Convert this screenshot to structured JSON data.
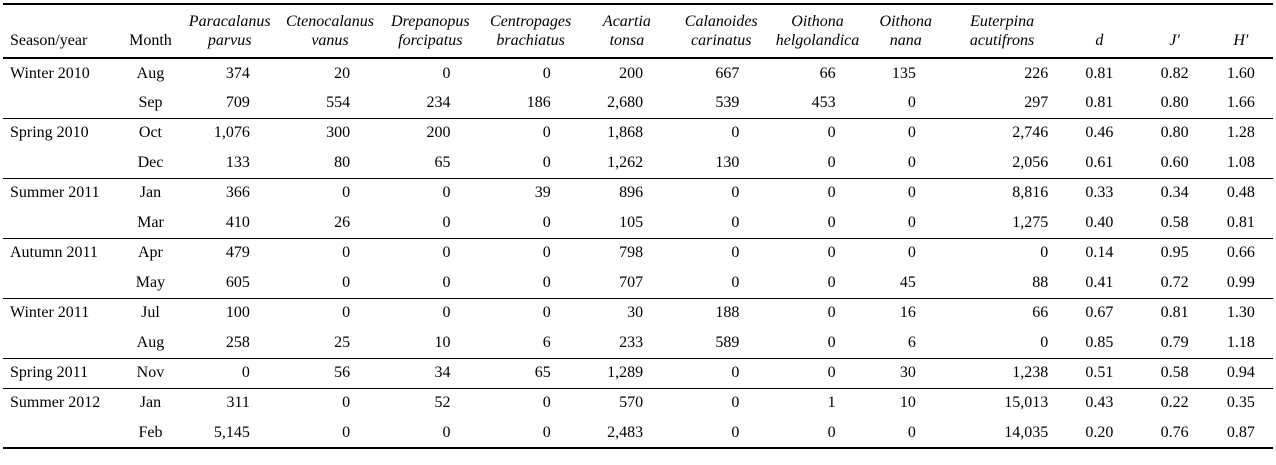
{
  "page": {
    "background_color": "#ffffff",
    "text_color": "#000000",
    "rule_color": "#000000"
  },
  "table": {
    "columns": [
      {
        "id": "season-year",
        "label_lines": [
          "Season/year"
        ],
        "italic": false
      },
      {
        "id": "month",
        "label_lines": [
          "Month"
        ],
        "italic": false
      },
      {
        "id": "paracalanus-parvus",
        "label_lines": [
          "Paracalanus",
          "parvus"
        ],
        "italic": true
      },
      {
        "id": "ctenocalanus-vanus",
        "label_lines": [
          "Ctenocalanus",
          "vanus"
        ],
        "italic": true
      },
      {
        "id": "drepanopus-forcipatus",
        "label_lines": [
          "Drepanopus",
          "forcipatus"
        ],
        "italic": true
      },
      {
        "id": "centropages-brachiatus",
        "label_lines": [
          "Centropages",
          "brachiatus"
        ],
        "italic": true
      },
      {
        "id": "acartia-tonsa",
        "label_lines": [
          "Acartia",
          "tonsa"
        ],
        "italic": true
      },
      {
        "id": "calanoides-carinatus",
        "label_lines": [
          "Calanoides",
          "carinatus"
        ],
        "italic": true
      },
      {
        "id": "oithona-helgolandica",
        "label_lines": [
          "Oithona",
          "helgolandica"
        ],
        "italic": true
      },
      {
        "id": "oithona-nana",
        "label_lines": [
          "Oithona",
          "nana"
        ],
        "italic": true
      },
      {
        "id": "euterpina-acutifrons",
        "label_lines": [
          "Euterpina",
          "acutifrons"
        ],
        "italic": true
      },
      {
        "id": "d-index",
        "label_lines": [
          "d"
        ],
        "italic": true
      },
      {
        "id": "j-index",
        "label_lines": [
          "J′"
        ],
        "italic": true
      },
      {
        "id": "h-index",
        "label_lines": [
          "H′"
        ],
        "italic": true
      }
    ],
    "rows": [
      {
        "season": "Winter 2010",
        "month": "Aug",
        "values": [
          "374",
          "20",
          "0",
          "0",
          "200",
          "667",
          "66",
          "135",
          "226",
          "0.81",
          "0.82",
          "1.60"
        ]
      },
      {
        "season": "",
        "month": "Sep",
        "values": [
          "709",
          "554",
          "234",
          "186",
          "2,680",
          "539",
          "453",
          "0",
          "297",
          "0.81",
          "0.80",
          "1.66"
        ]
      },
      {
        "season": "Spring 2010",
        "month": "Oct",
        "values": [
          "1,076",
          "300",
          "200",
          "0",
          "1,868",
          "0",
          "0",
          "0",
          "2,746",
          "0.46",
          "0.80",
          "1.28"
        ]
      },
      {
        "season": "",
        "month": "Dec",
        "values": [
          "133",
          "80",
          "65",
          "0",
          "1,262",
          "130",
          "0",
          "0",
          "2,056",
          "0.61",
          "0.60",
          "1.08"
        ]
      },
      {
        "season": "Summer 2011",
        "month": "Jan",
        "values": [
          "366",
          "0",
          "0",
          "39",
          "896",
          "0",
          "0",
          "0",
          "8,816",
          "0.33",
          "0.34",
          "0.48"
        ]
      },
      {
        "season": "",
        "month": "Mar",
        "values": [
          "410",
          "26",
          "0",
          "0",
          "105",
          "0",
          "0",
          "0",
          "1,275",
          "0.40",
          "0.58",
          "0.81"
        ]
      },
      {
        "season": "Autumn 2011",
        "month": "Apr",
        "values": [
          "479",
          "0",
          "0",
          "0",
          "798",
          "0",
          "0",
          "0",
          "0",
          "0.14",
          "0.95",
          "0.66"
        ]
      },
      {
        "season": "",
        "month": "May",
        "values": [
          "605",
          "0",
          "0",
          "0",
          "707",
          "0",
          "0",
          "45",
          "88",
          "0.41",
          "0.72",
          "0.99"
        ]
      },
      {
        "season": "Winter 2011",
        "month": "Jul",
        "values": [
          "100",
          "0",
          "0",
          "0",
          "30",
          "188",
          "0",
          "16",
          "66",
          "0.67",
          "0.81",
          "1.30"
        ]
      },
      {
        "season": "",
        "month": "Aug",
        "values": [
          "258",
          "25",
          "10",
          "6",
          "233",
          "589",
          "0",
          "6",
          "0",
          "0.85",
          "0.79",
          "1.18"
        ]
      },
      {
        "season": "Spring 2011",
        "month": "Nov",
        "values": [
          "0",
          "56",
          "34",
          "65",
          "1,289",
          "0",
          "0",
          "30",
          "1,238",
          "0.51",
          "0.58",
          "0.94"
        ]
      },
      {
        "season": "Summer 2012",
        "month": "Jan",
        "values": [
          "311",
          "0",
          "52",
          "0",
          "570",
          "0",
          "1",
          "10",
          "15,013",
          "0.43",
          "0.22",
          "0.35"
        ]
      },
      {
        "season": "",
        "month": "Feb",
        "values": [
          "5,145",
          "0",
          "0",
          "0",
          "2,483",
          "0",
          "0",
          "0",
          "14,035",
          "0.20",
          "0.76",
          "0.87"
        ]
      }
    ]
  }
}
